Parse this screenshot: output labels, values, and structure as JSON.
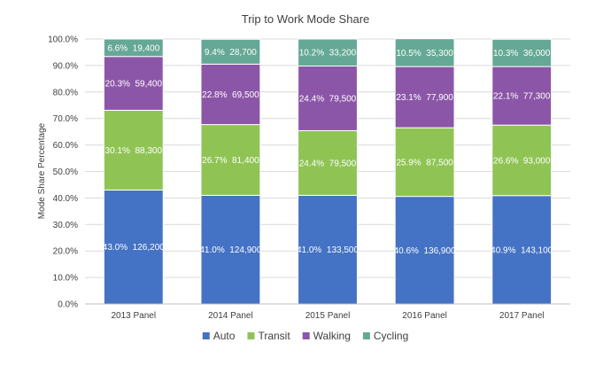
{
  "chart_data": {
    "type": "bar",
    "stacked": true,
    "title": "Trip to Work Mode Share",
    "xlabel": "",
    "ylabel": "Mode Share Percentage",
    "ylim": [
      0,
      100
    ],
    "yticks": [
      "0.0%",
      "10.0%",
      "20.0%",
      "30.0%",
      "40.0%",
      "50.0%",
      "60.0%",
      "70.0%",
      "80.0%",
      "90.0%",
      "100.0%"
    ],
    "grid": true,
    "legend_position": "bottom",
    "categories": [
      "2013 Panel",
      "2014 Panel",
      "2015 Panel",
      "2016 Panel",
      "2017 Panel"
    ],
    "series": [
      {
        "name": "Auto",
        "color": "#4472c4",
        "values": [
          43.0,
          41.0,
          41.0,
          40.6,
          40.9
        ],
        "labels": [
          "43.0%  126,200",
          "41.0%  124,900",
          "41.0%  133,500",
          "40.6%  136,900",
          "40.9%  143,100"
        ]
      },
      {
        "name": "Transit",
        "color": "#8fc454",
        "values": [
          30.1,
          26.7,
          24.4,
          25.9,
          26.6
        ],
        "labels": [
          "30.1%  88,300",
          "26.7%  81,400",
          "24.4%  79,500",
          "25.9%  87,500",
          "26.6%  93,000"
        ]
      },
      {
        "name": "Walking",
        "color": "#8c56a8",
        "values": [
          20.3,
          22.8,
          24.4,
          23.1,
          22.1
        ],
        "labels": [
          "20.3%  59,400",
          "22.8%  69,500",
          "24.4%  79,500",
          "23.1%  77,900",
          "22.1%  77,300"
        ]
      },
      {
        "name": "Cycling",
        "color": "#65a895",
        "values": [
          6.6,
          9.4,
          10.2,
          10.5,
          10.3
        ],
        "labels": [
          "6.6%  19,400",
          "9.4%  28,700",
          "10.2%  33,200",
          "10.5%  35,300",
          "10.3%  36,000"
        ]
      }
    ]
  }
}
